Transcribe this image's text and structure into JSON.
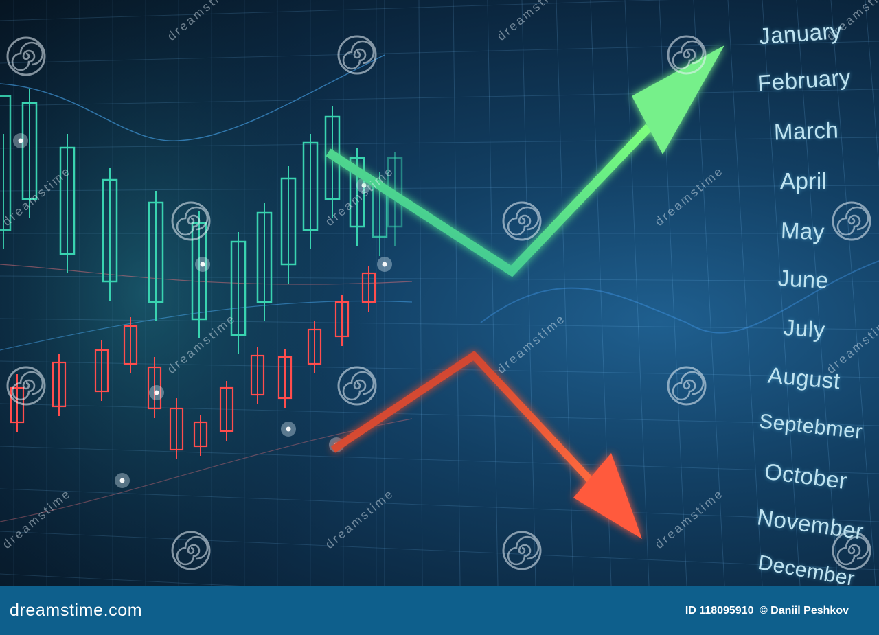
{
  "months": [
    "January",
    "February",
    "March",
    "April",
    "May",
    "June",
    "July",
    "August",
    "Septebmer",
    "October",
    "November",
    "December"
  ],
  "watermark_text": "dreamstime",
  "footer": {
    "logo": "dreamstime.com",
    "id_label": "ID 118095910",
    "credit": "© Daniil Peshkov"
  },
  "colors": {
    "up_arrow": "#5fe39a",
    "down_arrow": "#ff5a3c",
    "bull_candle": "#39d3b0",
    "bear_candle": "#ff4d4d",
    "footer_bar": "#0e5f8c",
    "month_text": "#bfe3f0"
  },
  "icons": [
    "trend-up-arrow-icon",
    "trend-down-arrow-icon",
    "watermark-spiral-icon"
  ]
}
